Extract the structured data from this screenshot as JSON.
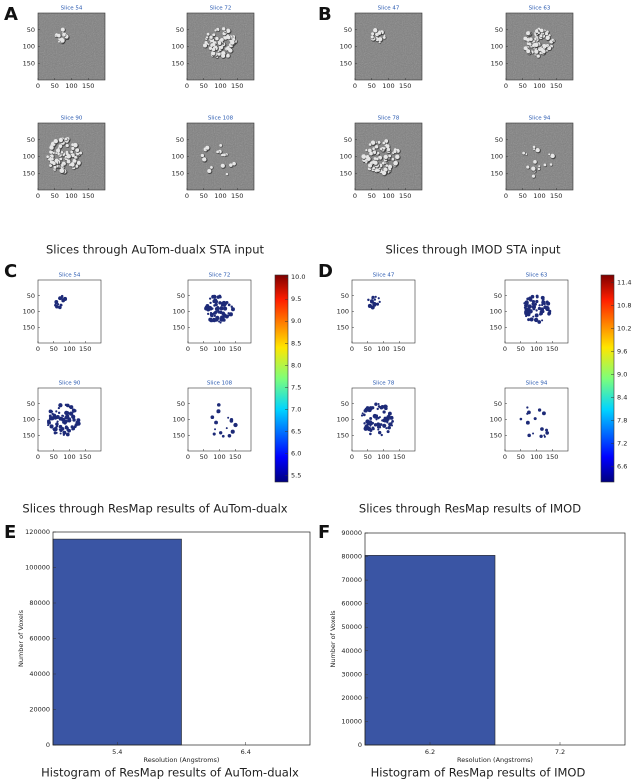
{
  "chart_data": [
    {
      "type": "slices",
      "label": "A",
      "caption": "Slices through AuTom-dualx STA input",
      "style": "grey",
      "slices": [
        "Slice 54",
        "Slice 72",
        "Slice 90",
        "Slice 108"
      ],
      "xlim": [
        0,
        200
      ],
      "ylim": [
        200,
        0
      ],
      "xticks": [
        0,
        50,
        100,
        150
      ],
      "yticks": [
        50,
        100,
        150
      ]
    },
    {
      "type": "slices",
      "label": "B",
      "caption": "Slices through IMOD STA input",
      "style": "grey",
      "slices": [
        "Slice 47",
        "Slice 63",
        "Slice 78",
        "Slice 94"
      ],
      "xlim": [
        0,
        200
      ],
      "ylim": [
        200,
        0
      ],
      "xticks": [
        0,
        50,
        100,
        150
      ],
      "yticks": [
        50,
        100,
        150
      ]
    },
    {
      "type": "slices",
      "label": "C",
      "caption": "Slices through ResMap results of AuTom-dualx",
      "style": "resmap",
      "slices": [
        "Slice 54",
        "Slice 72",
        "Slice 90",
        "Slice 108"
      ],
      "xlim": [
        0,
        200
      ],
      "ylim": [
        200,
        0
      ],
      "xticks": [
        0,
        50,
        100,
        150
      ],
      "yticks": [
        50,
        100,
        150
      ],
      "colorbar_lim": [
        5.35,
        10.05
      ],
      "colorbar_ticks": [
        5.5,
        {
          "value": 6,
          "label": "6.0"
        },
        6.5,
        {
          "value": 7,
          "label": "7.0"
        },
        7.5,
        {
          "value": 8,
          "label": "8.0"
        },
        8.5,
        {
          "value": 9,
          "label": "9.0"
        },
        9.5,
        {
          "value": 10,
          "label": "10.0"
        }
      ]
    },
    {
      "type": "slices",
      "label": "D",
      "caption": "Slices through ResMap results of IMOD",
      "style": "resmap",
      "slices": [
        "Slice 47",
        "Slice 63",
        "Slice 78",
        "Slice 94"
      ],
      "xlim": [
        0,
        200
      ],
      "ylim": [
        200,
        0
      ],
      "xticks": [
        0,
        50,
        100,
        150
      ],
      "yticks": [
        50,
        100,
        150
      ],
      "colorbar_lim": [
        6.2,
        11.6
      ],
      "colorbar_ticks": [
        6.6,
        7.2,
        7.8,
        8.4,
        {
          "value": 9,
          "label": "9.0"
        },
        9.6,
        10.2,
        10.8,
        11.4
      ]
    },
    {
      "type": "bar",
      "label": "E",
      "caption": "Histogram of ResMap results of AuTom-dualx",
      "xlabel": "Resolution (Angstroms)",
      "ylabel": "Number of Voxels",
      "color": "#3a55a4",
      "categories": [
        "5.4",
        "6.4"
      ],
      "values": [
        116000,
        0
      ],
      "ylim": [
        0,
        120000
      ],
      "yticks": [
        0,
        20000,
        40000,
        60000,
        80000,
        100000,
        120000
      ]
    },
    {
      "type": "bar",
      "label": "F",
      "caption": "Histogram of ResMap results of IMOD",
      "xlabel": "Resolution (Angstroms)",
      "ylabel": "Number of Voxels",
      "color": "#3a55a4",
      "categories": [
        "6.2",
        "7.2"
      ],
      "values": [
        80500,
        0
      ],
      "ylim": [
        0,
        90000
      ],
      "yticks": [
        0,
        10000,
        20000,
        30000,
        40000,
        50000,
        60000,
        70000,
        80000,
        90000
      ]
    }
  ]
}
